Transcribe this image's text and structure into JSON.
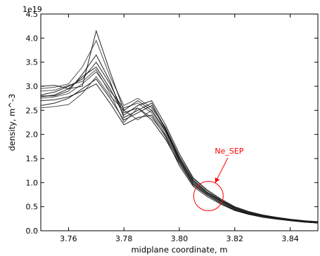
{
  "chart_data": {
    "type": "line",
    "title": "",
    "xlabel": "midplane coordinate, m",
    "ylabel": "density, m^-3",
    "y_exponent_label": "1e19",
    "xlim": [
      3.75,
      3.85
    ],
    "ylim": [
      0.0,
      4.5
    ],
    "x_ticks": [
      3.76,
      3.78,
      3.8,
      3.82,
      3.84
    ],
    "x_tick_labels": [
      "3.76",
      "3.78",
      "3.80",
      "3.82",
      "3.84"
    ],
    "y_ticks": [
      0.0,
      0.5,
      1.0,
      1.5,
      2.0,
      2.5,
      3.0,
      3.5,
      4.0,
      4.5
    ],
    "y_tick_labels": [
      "0.0",
      "0.5",
      "1.0",
      "1.5",
      "2.0",
      "2.5",
      "3.0",
      "3.5",
      "4.0",
      "4.5"
    ],
    "grid": false,
    "line_color": "#000000",
    "x": [
      3.75,
      3.755,
      3.76,
      3.765,
      3.77,
      3.775,
      3.78,
      3.785,
      3.79,
      3.795,
      3.8,
      3.805,
      3.81,
      3.815,
      3.82,
      3.825,
      3.83,
      3.835,
      3.84,
      3.845,
      3.85
    ],
    "series": [
      {
        "values": [
          2.75,
          2.78,
          2.85,
          3.05,
          3.3,
          2.9,
          2.55,
          2.65,
          2.45,
          2.0,
          1.45,
          1.0,
          0.78,
          0.6,
          0.45,
          0.36,
          0.3,
          0.26,
          0.22,
          0.19,
          0.17
        ]
      },
      {
        "values": [
          2.82,
          2.88,
          3.0,
          3.15,
          3.5,
          3.05,
          2.45,
          2.55,
          2.3,
          1.9,
          1.4,
          0.95,
          0.74,
          0.57,
          0.43,
          0.35,
          0.29,
          0.25,
          0.21,
          0.18,
          0.16
        ]
      },
      {
        "values": [
          2.6,
          2.65,
          2.75,
          2.95,
          3.15,
          2.75,
          2.3,
          2.45,
          2.6,
          2.1,
          1.5,
          1.05,
          0.8,
          0.63,
          0.48,
          0.38,
          0.31,
          0.27,
          0.23,
          0.2,
          0.18
        ]
      },
      {
        "values": [
          2.95,
          2.98,
          3.05,
          3.4,
          3.95,
          3.2,
          2.6,
          2.75,
          2.55,
          2.15,
          1.55,
          1.08,
          0.83,
          0.64,
          0.49,
          0.39,
          0.32,
          0.27,
          0.23,
          0.2,
          0.18
        ]
      },
      {
        "values": [
          2.7,
          2.72,
          2.78,
          2.9,
          3.05,
          2.65,
          2.2,
          2.35,
          2.4,
          1.95,
          1.35,
          0.92,
          0.71,
          0.55,
          0.42,
          0.34,
          0.28,
          0.24,
          0.21,
          0.18,
          0.16
        ]
      },
      {
        "values": [
          3.0,
          3.02,
          2.95,
          3.2,
          3.4,
          2.95,
          2.4,
          2.6,
          2.7,
          2.2,
          1.6,
          1.1,
          0.85,
          0.66,
          0.5,
          0.4,
          0.33,
          0.28,
          0.24,
          0.21,
          0.19
        ]
      },
      {
        "values": [
          2.55,
          2.58,
          2.62,
          2.85,
          3.2,
          2.8,
          2.5,
          2.3,
          2.5,
          2.05,
          1.48,
          1.02,
          0.79,
          0.61,
          0.46,
          0.37,
          0.3,
          0.26,
          0.22,
          0.19,
          0.17
        ]
      },
      {
        "values": [
          2.8,
          2.8,
          2.9,
          3.25,
          3.65,
          3.1,
          2.35,
          2.5,
          2.65,
          2.12,
          1.52,
          1.04,
          0.8,
          0.62,
          0.47,
          0.37,
          0.31,
          0.26,
          0.22,
          0.19,
          0.17
        ]
      },
      {
        "values": [
          2.78,
          2.82,
          2.95,
          3.0,
          4.15,
          3.3,
          2.5,
          2.7,
          2.5,
          2.08,
          1.46,
          0.98,
          0.76,
          0.58,
          0.44,
          0.35,
          0.29,
          0.25,
          0.21,
          0.18,
          0.16
        ]
      },
      {
        "values": [
          2.9,
          2.92,
          3.02,
          3.1,
          3.35,
          2.85,
          2.25,
          2.55,
          2.35,
          1.98,
          1.42,
          0.97,
          0.75,
          0.58,
          0.44,
          0.36,
          0.29,
          0.25,
          0.21,
          0.18,
          0.16
        ]
      }
    ],
    "annotation": {
      "text": "Ne_SEP",
      "color": "#ff0000",
      "circle_center": [
        3.8105,
        0.72
      ],
      "text_position": [
        3.818,
        1.6
      ]
    }
  }
}
